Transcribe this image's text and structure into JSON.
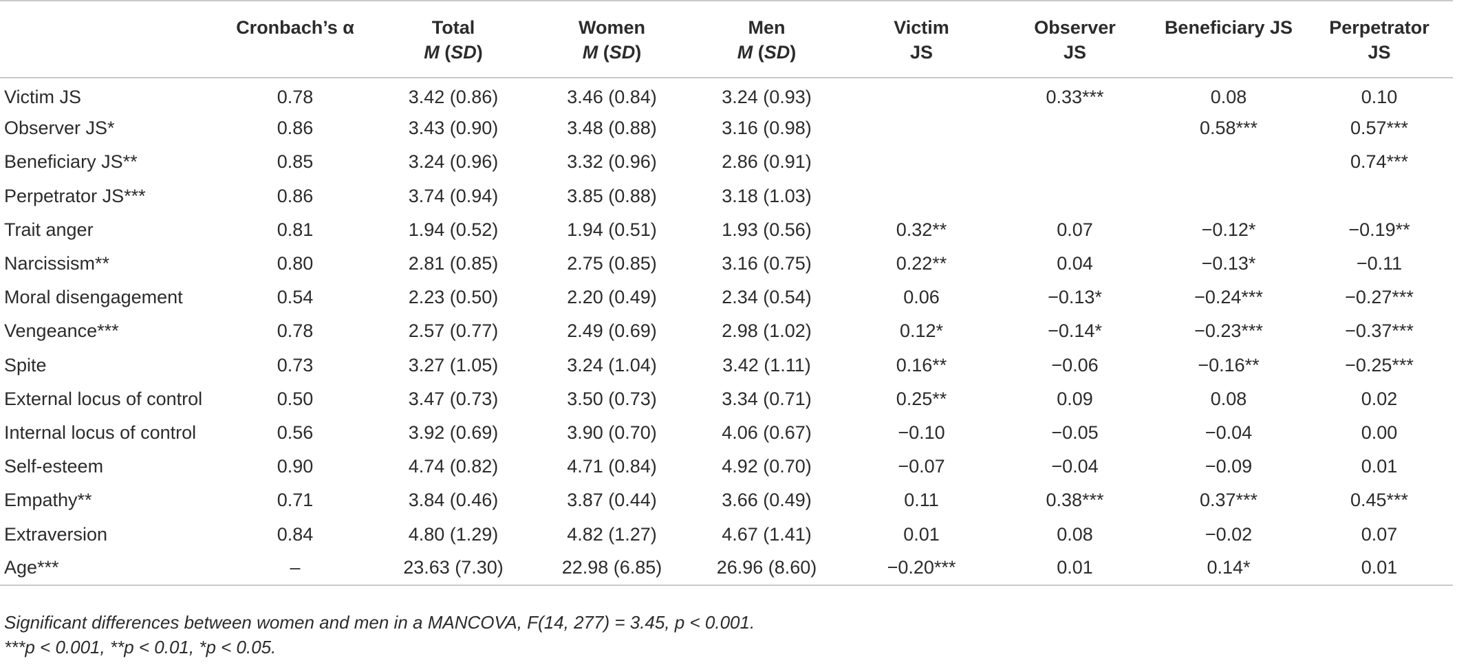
{
  "header": {
    "cronbach": "Cronbach’s α",
    "total": {
      "line1": "Total",
      "m": "M",
      "sd": "SD"
    },
    "women": {
      "line1": "Women",
      "m": "M",
      "sd": "SD"
    },
    "men": {
      "line1": "Men",
      "m": "M",
      "sd": "SD"
    },
    "victim": {
      "line1": "Victim",
      "line2": "JS"
    },
    "observer": {
      "line1": "Observer",
      "line2": "JS"
    },
    "beneficiary": {
      "line1": "Beneficiary JS"
    },
    "perpetrator": {
      "line1": "Perpetrator",
      "line2": "JS"
    }
  },
  "rows": [
    {
      "label": "Victim JS",
      "cells": [
        "0.78",
        "3.42 (0.86)",
        "3.46 (0.84)",
        "3.24 (0.93)",
        "",
        "0.33***",
        "0.08",
        "0.10"
      ]
    },
    {
      "label": "Observer JS*",
      "cells": [
        "0.86",
        "3.43 (0.90)",
        "3.48 (0.88)",
        "3.16 (0.98)",
        "",
        "",
        "0.58***",
        "0.57***"
      ]
    },
    {
      "label": "Beneficiary JS**",
      "cells": [
        "0.85",
        "3.24 (0.96)",
        "3.32 (0.96)",
        "2.86 (0.91)",
        "",
        "",
        "",
        "0.74***"
      ]
    },
    {
      "label": "Perpetrator JS***",
      "cells": [
        "0.86",
        "3.74 (0.94)",
        "3.85 (0.88)",
        "3.18 (1.03)",
        "",
        "",
        "",
        ""
      ]
    },
    {
      "label": "Trait anger",
      "cells": [
        "0.81",
        "1.94 (0.52)",
        "1.94 (0.51)",
        "1.93 (0.56)",
        "0.32**",
        "0.07",
        "−0.12*",
        "−0.19**"
      ]
    },
    {
      "label": "Narcissism**",
      "cells": [
        "0.80",
        "2.81 (0.85)",
        "2.75 (0.85)",
        "3.16 (0.75)",
        "0.22**",
        "0.04",
        "−0.13*",
        "−0.11"
      ]
    },
    {
      "label": "Moral disengagement",
      "cells": [
        "0.54",
        "2.23 (0.50)",
        "2.20 (0.49)",
        "2.34 (0.54)",
        "0.06",
        "−0.13*",
        "−0.24***",
        "−0.27***"
      ]
    },
    {
      "label": "Vengeance***",
      "cells": [
        "0.78",
        "2.57 (0.77)",
        "2.49 (0.69)",
        "2.98 (1.02)",
        "0.12*",
        "−0.14*",
        "−0.23***",
        "−0.37***"
      ]
    },
    {
      "label": "Spite",
      "cells": [
        "0.73",
        "3.27 (1.05)",
        "3.24 (1.04)",
        "3.42 (1.11)",
        "0.16**",
        "−0.06",
        "−0.16**",
        "−0.25***"
      ]
    },
    {
      "label": "External locus of control",
      "cells": [
        "0.50",
        "3.47 (0.73)",
        "3.50 (0.73)",
        "3.34 (0.71)",
        "0.25**",
        "0.09",
        "0.08",
        "0.02"
      ]
    },
    {
      "label": "Internal locus of control",
      "cells": [
        "0.56",
        "3.92 (0.69)",
        "3.90 (0.70)",
        "4.06 (0.67)",
        "−0.10",
        "−0.05",
        "−0.04",
        "0.00"
      ]
    },
    {
      "label": "Self-esteem",
      "cells": [
        "0.90",
        "4.74 (0.82)",
        "4.71 (0.84)",
        "4.92 (0.70)",
        "−0.07",
        "−0.04",
        "−0.09",
        "0.01"
      ]
    },
    {
      "label": "Empathy**",
      "cells": [
        "0.71",
        "3.84 (0.46)",
        "3.87 (0.44)",
        "3.66 (0.49)",
        "0.11",
        "0.38***",
        "0.37***",
        "0.45***"
      ]
    },
    {
      "label": "Extraversion",
      "cells": [
        "0.84",
        "4.80 (1.29)",
        "4.82 (1.27)",
        "4.67 (1.41)",
        "0.01",
        "0.08",
        "−0.02",
        "0.07"
      ]
    },
    {
      "label": "Age***",
      "cells": [
        "–",
        "23.63 (7.30)",
        "22.98 (6.85)",
        "26.96 (8.60)",
        "−0.20***",
        "0.01",
        "0.14*",
        "0.01"
      ]
    }
  ],
  "notes": {
    "line1": "Significant differences between women and men in a MANCOVA, F(14, 277) = 3.45, p < 0.001.",
    "line2": "***p < 0.001, **p < 0.01, *p < 0.05."
  }
}
